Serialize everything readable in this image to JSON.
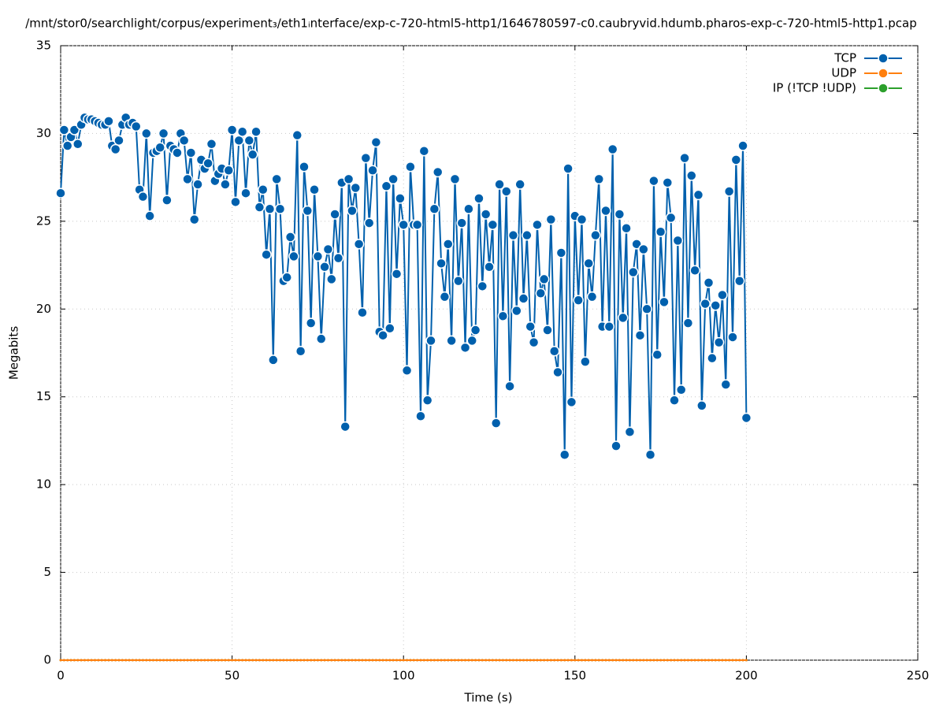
{
  "chart_data": {
    "type": "line",
    "title": "/mnt/stor0/searchlight/corpus/experiment₃/eth1ᵢnterface/exp-c-720-html5-http1/1646780597-c0.caubryvid.hdumb.pharos-exp-c-720-html5-http1.pcap",
    "x_label": "Time (s)",
    "y_label": "Megabits",
    "xlim": [
      0,
      250
    ],
    "xticks": [
      0,
      50,
      100,
      150,
      200,
      250
    ],
    "ylim": [
      0,
      35
    ],
    "yticks": [
      0,
      5,
      10,
      15,
      20,
      25,
      30,
      35
    ],
    "grid": true,
    "legend": "top-right",
    "x": [
      0,
      1,
      2,
      3,
      4,
      5,
      6,
      7,
      8,
      9,
      10,
      11,
      12,
      13,
      14,
      15,
      16,
      17,
      18,
      19,
      20,
      21,
      22,
      23,
      24,
      25,
      26,
      27,
      28,
      29,
      30,
      31,
      32,
      33,
      34,
      35,
      36,
      37,
      38,
      39,
      40,
      41,
      42,
      43,
      44,
      45,
      46,
      47,
      48,
      49,
      50,
      51,
      52,
      53,
      54,
      55,
      56,
      57,
      58,
      59,
      60,
      61,
      62,
      63,
      64,
      65,
      66,
      67,
      68,
      69,
      70,
      71,
      72,
      73,
      74,
      75,
      76,
      77,
      78,
      79,
      80,
      81,
      82,
      83,
      84,
      85,
      86,
      87,
      88,
      89,
      90,
      91,
      92,
      93,
      94,
      95,
      96,
      97,
      98,
      99,
      100,
      101,
      102,
      103,
      104,
      105,
      106,
      107,
      108,
      109,
      110,
      111,
      112,
      113,
      114,
      115,
      116,
      117,
      118,
      119,
      120,
      121,
      122,
      123,
      124,
      125,
      126,
      127,
      128,
      129,
      130,
      131,
      132,
      133,
      134,
      135,
      136,
      137,
      138,
      139,
      140,
      141,
      142,
      143,
      144,
      145,
      146,
      147,
      148,
      149,
      150,
      151,
      152,
      153,
      154,
      155,
      156,
      157,
      158,
      159,
      160,
      161,
      162,
      163,
      164,
      165,
      166,
      167,
      168,
      169,
      170,
      171,
      172,
      173,
      174,
      175,
      176,
      177,
      178,
      179,
      180,
      181,
      182,
      183,
      184,
      185,
      186,
      187,
      188,
      189,
      190,
      191,
      192,
      193,
      194,
      195,
      196,
      197,
      198,
      199,
      200
    ],
    "series": [
      {
        "name": "TCP",
        "color": "#0060ad",
        "values": [
          26.6,
          30.2,
          29.3,
          29.8,
          30.2,
          29.4,
          30.5,
          30.9,
          30.8,
          30.8,
          30.7,
          30.6,
          30.5,
          30.5,
          30.7,
          29.3,
          29.1,
          29.6,
          30.5,
          30.9,
          30.5,
          30.6,
          30.4,
          26.8,
          26.4,
          30.0,
          25.3,
          28.9,
          29.0,
          29.2,
          30.0,
          26.2,
          29.3,
          29.1,
          28.9,
          30.0,
          29.6,
          27.4,
          28.9,
          25.1,
          27.1,
          28.5,
          28.0,
          28.3,
          29.4,
          27.3,
          27.7,
          28.0,
          27.1,
          27.9,
          30.2,
          26.1,
          29.6,
          30.1,
          26.6,
          29.6,
          28.8,
          30.1,
          25.8,
          26.8,
          23.1,
          25.7,
          17.1,
          27.4,
          25.7,
          21.6,
          21.8,
          24.1,
          23.0,
          29.9,
          17.6,
          28.1,
          25.6,
          19.2,
          26.8,
          23.0,
          18.3,
          22.4,
          23.4,
          21.7,
          25.4,
          22.9,
          27.2,
          13.3,
          27.4,
          25.6,
          26.9,
          23.7,
          19.8,
          28.6,
          24.9,
          27.9,
          29.5,
          18.7,
          18.5,
          27.0,
          18.9,
          27.4,
          22.0,
          26.3,
          24.8,
          16.5,
          28.1,
          24.8,
          24.8,
          13.9,
          29.0,
          14.8,
          18.2,
          25.7,
          27.8,
          22.6,
          20.7,
          23.7,
          18.2,
          27.4,
          21.6,
          24.9,
          17.8,
          25.7,
          18.2,
          18.8,
          26.3,
          21.3,
          25.4,
          22.4,
          24.8,
          13.5,
          27.1,
          19.6,
          26.7,
          15.6,
          24.2,
          19.9,
          27.1,
          20.6,
          24.2,
          19.0,
          18.1,
          24.8,
          20.9,
          21.7,
          18.8,
          25.1,
          17.6,
          16.4,
          23.2,
          11.7,
          28.0,
          14.7,
          25.3,
          20.5,
          25.1,
          17.0,
          22.6,
          20.7,
          24.2,
          27.4,
          19.0,
          25.6,
          19.0,
          29.1,
          12.2,
          25.4,
          19.5,
          24.6,
          13.0,
          22.1,
          23.7,
          18.5,
          23.4,
          20.0,
          11.7,
          27.3,
          17.4,
          24.4,
          20.4,
          27.2,
          25.2,
          14.8,
          23.9,
          15.4,
          28.6,
          19.2,
          27.6,
          22.2,
          26.5,
          14.5,
          20.3,
          21.5,
          17.2,
          20.2,
          18.1,
          20.8,
          15.7,
          26.7,
          18.4,
          28.5,
          21.6,
          29.3,
          13.8
        ]
      },
      {
        "name": "UDP",
        "color": "#ff7f0e",
        "values": [
          0,
          0,
          0,
          0,
          0,
          0,
          0,
          0,
          0,
          0,
          0,
          0,
          0,
          0,
          0,
          0,
          0,
          0,
          0,
          0,
          0,
          0,
          0,
          0,
          0,
          0,
          0,
          0,
          0,
          0,
          0,
          0,
          0,
          0,
          0,
          0,
          0,
          0,
          0,
          0,
          0,
          0,
          0,
          0,
          0,
          0,
          0,
          0,
          0,
          0,
          0,
          0,
          0,
          0,
          0,
          0,
          0,
          0,
          0,
          0,
          0,
          0,
          0,
          0,
          0,
          0,
          0,
          0,
          0,
          0,
          0,
          0,
          0,
          0,
          0,
          0,
          0,
          0,
          0,
          0,
          0,
          0,
          0,
          0,
          0,
          0,
          0,
          0,
          0,
          0,
          0,
          0,
          0,
          0,
          0,
          0,
          0,
          0,
          0,
          0,
          0,
          0,
          0,
          0,
          0,
          0,
          0,
          0,
          0,
          0,
          0,
          0,
          0,
          0,
          0,
          0,
          0,
          0,
          0,
          0,
          0,
          0,
          0,
          0,
          0,
          0,
          0,
          0,
          0,
          0,
          0,
          0,
          0,
          0,
          0,
          0,
          0,
          0,
          0,
          0,
          0,
          0,
          0,
          0,
          0,
          0,
          0,
          0,
          0,
          0,
          0,
          0,
          0,
          0,
          0,
          0,
          0,
          0,
          0,
          0,
          0,
          0,
          0,
          0,
          0,
          0,
          0,
          0,
          0,
          0,
          0,
          0,
          0,
          0,
          0,
          0,
          0,
          0,
          0,
          0,
          0,
          0,
          0,
          0,
          0,
          0,
          0,
          0,
          0,
          0,
          0,
          0,
          0,
          0,
          0,
          0,
          0,
          0,
          0,
          0,
          0
        ]
      },
      {
        "name": "IP (!TCP  !UDP)",
        "color": "#2ca02c",
        "values": [
          0,
          0,
          0,
          0,
          0,
          0,
          0,
          0,
          0,
          0,
          0,
          0,
          0,
          0,
          0,
          0,
          0,
          0,
          0,
          0,
          0,
          0,
          0,
          0,
          0,
          0,
          0,
          0,
          0,
          0,
          0,
          0,
          0,
          0,
          0,
          0,
          0,
          0,
          0,
          0,
          0,
          0,
          0,
          0,
          0,
          0,
          0,
          0,
          0,
          0,
          0,
          0,
          0,
          0,
          0,
          0,
          0,
          0,
          0,
          0,
          0,
          0,
          0,
          0,
          0,
          0,
          0,
          0,
          0,
          0,
          0,
          0,
          0,
          0,
          0,
          0,
          0,
          0,
          0,
          0,
          0,
          0,
          0,
          0,
          0,
          0,
          0,
          0,
          0,
          0,
          0,
          0,
          0,
          0,
          0,
          0,
          0,
          0,
          0,
          0,
          0,
          0,
          0,
          0,
          0,
          0,
          0,
          0,
          0,
          0,
          0,
          0,
          0,
          0,
          0,
          0,
          0,
          0,
          0,
          0,
          0,
          0,
          0,
          0,
          0,
          0,
          0,
          0,
          0,
          0,
          0,
          0,
          0,
          0,
          0,
          0,
          0,
          0,
          0,
          0,
          0,
          0,
          0,
          0,
          0,
          0,
          0,
          0,
          0,
          0,
          0,
          0,
          0,
          0,
          0,
          0,
          0,
          0,
          0,
          0,
          0,
          0,
          0,
          0,
          0,
          0,
          0,
          0,
          0,
          0,
          0,
          0,
          0,
          0,
          0,
          0,
          0,
          0,
          0,
          0,
          0,
          0,
          0,
          0,
          0,
          0,
          0,
          0,
          0,
          0,
          0,
          0,
          0,
          0,
          0,
          0,
          0,
          0,
          0,
          0,
          0
        ]
      }
    ]
  }
}
